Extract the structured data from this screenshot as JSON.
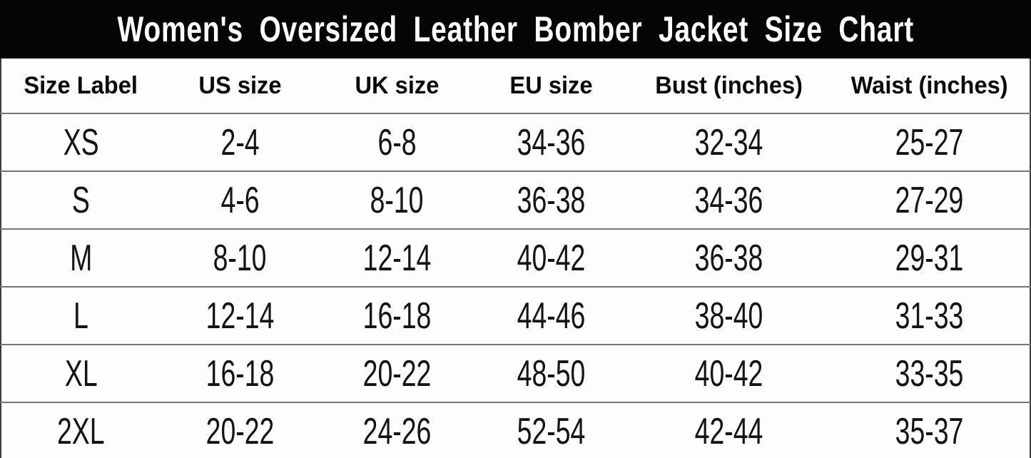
{
  "title_banner": {
    "title": "Women's Oversized Leather Bomber Jacket Size Chart"
  },
  "colors": {
    "banner_bg": "#050505",
    "banner_text": "#ffffff",
    "table_bg": "#fdfdfd",
    "cell_text": "#141414",
    "row_divider": "#757575",
    "outer_border": "#3d3d3d"
  },
  "chart_data": {
    "type": "table",
    "title": "Women's Oversized Leather Bomber Jacket Size Chart",
    "columns": [
      "Size Label",
      "US size",
      "UK size",
      "EU size",
      "Bust (inches)",
      "Waist (inches)"
    ],
    "rows": [
      [
        "XS",
        "2-4",
        "6-8",
        "34-36",
        "32-34",
        "25-27"
      ],
      [
        "S",
        "4-6",
        "8-10",
        "36-38",
        "34-36",
        "27-29"
      ],
      [
        "M",
        "8-10",
        "12-14",
        "40-42",
        "36-38",
        "29-31"
      ],
      [
        "L",
        "12-14",
        "16-18",
        "44-46",
        "38-40",
        "31-33"
      ],
      [
        "XL",
        "16-18",
        "20-22",
        "48-50",
        "40-42",
        "33-35"
      ],
      [
        "2XL",
        "20-22",
        "24-26",
        "52-54",
        "42-44",
        "35-37"
      ]
    ],
    "layout": {
      "grid": "horizontal-rules-only",
      "header_style": "bold",
      "banner_position": "top"
    }
  }
}
